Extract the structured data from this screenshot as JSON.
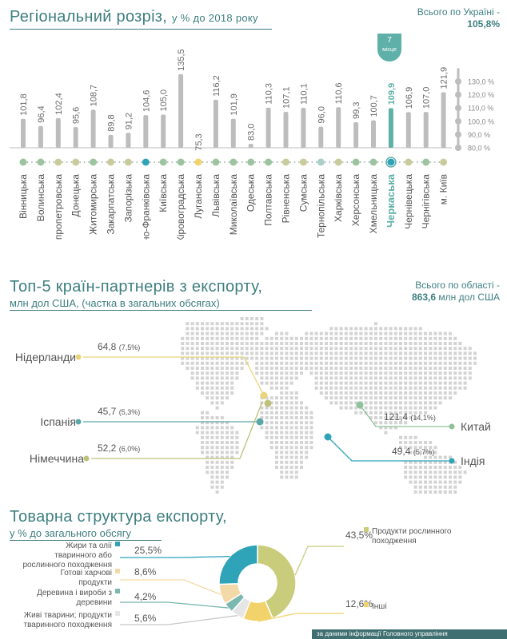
{
  "section1": {
    "title": "Регіональний розріз,",
    "title_suffix": "у % до 2018 року",
    "note_label": "Всього по Україні -",
    "note_value": "105,8%",
    "badge_number": "7",
    "badge_text": "місце"
  },
  "section2": {
    "title": "Топ-5 країн-партнерів з експорту,",
    "subtitle": "млн дол США, (частка в загальних обсягах)",
    "note_label": "Всього по області -",
    "note_value": "863,6",
    "note_unit": "млн дол США"
  },
  "section3": {
    "title": "Товарна структура експорту,",
    "subtitle": "у % до загального обсягу"
  },
  "footer": "за даними інформації Головного управління",
  "chart_data": [
    {
      "type": "bar",
      "title": "Регіональний розріз, у % до 2018 року",
      "categories": [
        "Вінницька",
        "Волинська",
        "Дніпропетровська",
        "Донецька",
        "Житомирська",
        "Закарпатська",
        "Запорізька",
        "Івано-Франківська",
        "Київська",
        "Кіровоградська",
        "Луганська",
        "Львівська",
        "Миколаївська",
        "Одеська",
        "Полтавська",
        "Рівненська",
        "Сумська",
        "Тернопільська",
        "Харківська",
        "Херсонська",
        "Хмельницька",
        "Черкаська",
        "Чернівецька",
        "Чернігівська",
        "м. Київ"
      ],
      "values": [
        101.8,
        96.4,
        102.4,
        95.6,
        108.7,
        89.8,
        91.2,
        104.6,
        105.0,
        135.5,
        75.3,
        116.2,
        101.9,
        83.0,
        110.3,
        107.1,
        110.1,
        96.0,
        110.6,
        99.3,
        100.7,
        109.9,
        106.9,
        107.0,
        121.9
      ],
      "value_labels": [
        "101,8",
        "96,4",
        "102,4",
        "95,6",
        "108,7",
        "89,8",
        "91,2",
        "104,6",
        "105,0",
        "135,5",
        "75,3",
        "116,2",
        "101,9",
        "83,0",
        "110,3",
        "107,1",
        "110,1",
        "96,0",
        "110,6",
        "99,3",
        "100,7",
        "109,9",
        "106,9",
        "107,0",
        "121,9"
      ],
      "dot_colors": [
        "#9dc4a0",
        "#9dc4a0",
        "#c9cc9a",
        "#c9cc9a",
        "#9dc4a0",
        "#c9cc9a",
        "#c9cc9a",
        "#2fa3b8",
        "#9dc4a0",
        "#9dc4a0",
        "#f2d36b",
        "#9dc4a0",
        "#9dc4a0",
        "#9dc4a0",
        "#9dc4a0",
        "#c9cc9a",
        "#c9cc9a",
        "#a9cfc7",
        "#c9cc9a",
        "#9dc4a0",
        "#9dc4a0",
        "#2fa3b8",
        "#c9cc9a",
        "#9dc4a0",
        "#c9cc9a"
      ],
      "highlight_index": 21,
      "bar_color": "#bdbdbd",
      "highlight_color": "#5fb0a8",
      "axis_ticks": [
        "130,0 %",
        "120,0 %",
        "110,0 %",
        "100,0 %",
        "90,0 %",
        "80,0 %"
      ],
      "axis_tick_values": [
        130,
        120,
        110,
        100,
        90,
        80
      ],
      "ylim": [
        80,
        140
      ]
    },
    {
      "type": "table",
      "title": "Топ-5 країн-партнерів з експорту",
      "countries": [
        {
          "name": "Нідерланди",
          "value": "64,8",
          "share": "(7,5%)",
          "color": "#e8d57a"
        },
        {
          "name": "Іспанія",
          "value": "45,7",
          "share": "(5,3%)",
          "color": "#5aa9a8"
        },
        {
          "name": "Німеччина",
          "value": "52,2",
          "share": "(6,0%)",
          "color": "#bfc27a"
        },
        {
          "name": "Китай",
          "value": "121,4",
          "share": "(14,1%)",
          "color": "#8fc29a"
        },
        {
          "name": "Індія",
          "value": "49,4",
          "share": "(5,7%)",
          "color": "#2fa3b8"
        }
      ]
    },
    {
      "type": "pie",
      "title": "Товарна структура експорту",
      "slices": [
        {
          "label": "Продукти рослинного походження",
          "value": 43.5,
          "value_label": "43,5%",
          "color": "#c9cc7a"
        },
        {
          "label": "Інші",
          "value": 12.6,
          "value_label": "12,6%",
          "color": "#f2d36b"
        },
        {
          "label": "Живі тварини; продукти тваринного походження",
          "value": 5.6,
          "value_label": "5,6%",
          "color": "#e6e6e6"
        },
        {
          "label": "Деревина і вироби з деревини",
          "value": 4.2,
          "value_label": "4,2%",
          "color": "#7ab8b0"
        },
        {
          "label": "Готові харчові продукти",
          "value": 8.6,
          "value_label": "8,6%",
          "color": "#f4d9a8"
        },
        {
          "label": "Жири та олії тваринного або рослинного походження",
          "value": 25.5,
          "value_label": "25,5%",
          "color": "#2fa3b8"
        }
      ]
    }
  ]
}
